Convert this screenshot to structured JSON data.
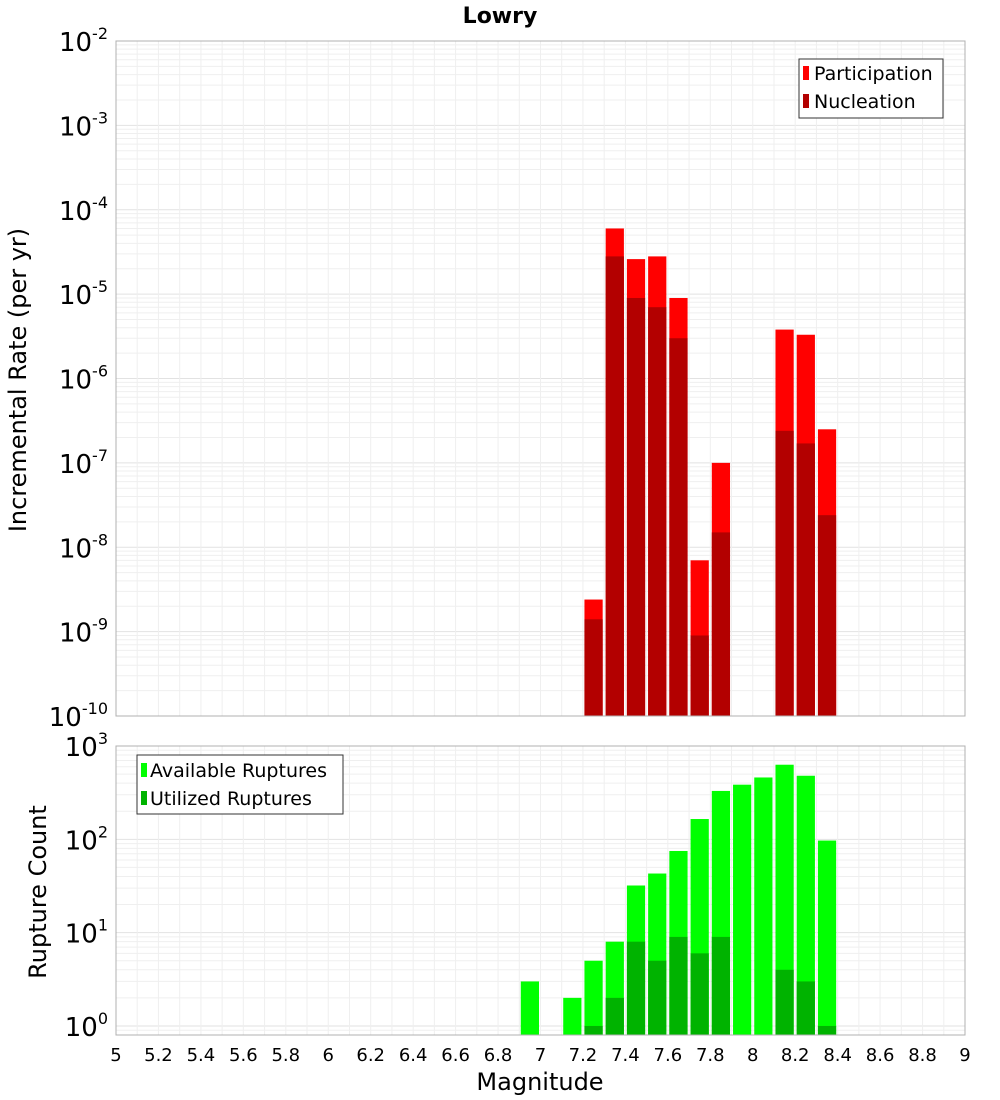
{
  "chart_data": [
    {
      "type": "bar",
      "title": "Lowry",
      "ylabel": "Incremental Rate (per yr)",
      "xlabel": "",
      "xlim": [
        5,
        9
      ],
      "yscale": "log",
      "ylim": [
        1e-10,
        0.01
      ],
      "grid": true,
      "legend_position": "top-right",
      "series": [
        {
          "name": "Participation",
          "color": "#ff0000",
          "points": [
            {
              "x": 7.25,
              "y": 2.4e-09
            },
            {
              "x": 7.35,
              "y": 6e-05
            },
            {
              "x": 7.45,
              "y": 2.6e-05
            },
            {
              "x": 7.55,
              "y": 2.8e-05
            },
            {
              "x": 7.65,
              "y": 9e-06
            },
            {
              "x": 7.75,
              "y": 7e-09
            },
            {
              "x": 7.85,
              "y": 1e-07
            },
            {
              "x": 8.15,
              "y": 3.8e-06
            },
            {
              "x": 8.25,
              "y": 3.3e-06
            },
            {
              "x": 8.35,
              "y": 2.5e-07
            }
          ]
        },
        {
          "name": "Nucleation",
          "color": "#b30000",
          "points": [
            {
              "x": 7.25,
              "y": 1.4e-09
            },
            {
              "x": 7.35,
              "y": 2.8e-05
            },
            {
              "x": 7.45,
              "y": 9e-06
            },
            {
              "x": 7.55,
              "y": 7e-06
            },
            {
              "x": 7.65,
              "y": 3e-06
            },
            {
              "x": 7.75,
              "y": 9e-10
            },
            {
              "x": 7.85,
              "y": 1.5e-08
            },
            {
              "x": 8.15,
              "y": 2.4e-07
            },
            {
              "x": 8.25,
              "y": 1.7e-07
            },
            {
              "x": 8.35,
              "y": 2.4e-08
            }
          ]
        }
      ]
    },
    {
      "type": "bar",
      "title": "",
      "ylabel": "Rupture Count",
      "xlabel": "Magnitude",
      "xlim": [
        5,
        9
      ],
      "yscale": "log",
      "ylim": [
        0.8,
        1000
      ],
      "grid": true,
      "legend_position": "top-left",
      "x_ticks": [
        "5",
        "5.2",
        "5.4",
        "5.6",
        "5.8",
        "6",
        "6.2",
        "6.4",
        "6.6",
        "6.8",
        "7",
        "7.2",
        "7.4",
        "7.6",
        "7.8",
        "8",
        "8.2",
        "8.4",
        "8.6",
        "8.8",
        "9"
      ],
      "series": [
        {
          "name": "Available Ruptures",
          "color": "#00ff00",
          "points": [
            {
              "x": 6.95,
              "y": 3
            },
            {
              "x": 7.15,
              "y": 2
            },
            {
              "x": 7.25,
              "y": 5
            },
            {
              "x": 7.35,
              "y": 8
            },
            {
              "x": 7.45,
              "y": 32
            },
            {
              "x": 7.55,
              "y": 43
            },
            {
              "x": 7.65,
              "y": 75
            },
            {
              "x": 7.75,
              "y": 165
            },
            {
              "x": 7.85,
              "y": 330
            },
            {
              "x": 7.95,
              "y": 385
            },
            {
              "x": 8.05,
              "y": 460
            },
            {
              "x": 8.15,
              "y": 630
            },
            {
              "x": 8.25,
              "y": 480
            },
            {
              "x": 8.35,
              "y": 97
            }
          ]
        },
        {
          "name": "Utilized Ruptures",
          "color": "#00b300",
          "points": [
            {
              "x": 7.25,
              "y": 1
            },
            {
              "x": 7.35,
              "y": 2
            },
            {
              "x": 7.45,
              "y": 8
            },
            {
              "x": 7.55,
              "y": 5
            },
            {
              "x": 7.65,
              "y": 9
            },
            {
              "x": 7.75,
              "y": 6
            },
            {
              "x": 7.85,
              "y": 9
            },
            {
              "x": 8.15,
              "y": 4
            },
            {
              "x": 8.25,
              "y": 3
            },
            {
              "x": 8.35,
              "y": 1
            }
          ]
        }
      ]
    }
  ]
}
